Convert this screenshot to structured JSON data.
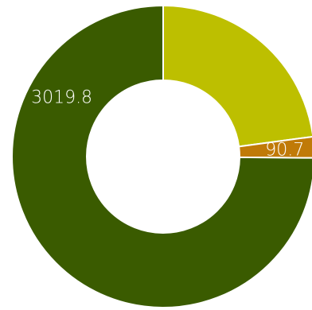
{
  "chart_data": {
    "type": "pie",
    "variant": "donut",
    "start_angle_deg": 0,
    "direction": "clockwise",
    "slices": [
      {
        "value": 923.5,
        "color": "#bdbf00",
        "label": ""
      },
      {
        "value": 90.7,
        "color": "#c07a08",
        "label": "90.7"
      },
      {
        "value": 3019.8,
        "color": "#3a5b00",
        "label": "3019.8"
      }
    ],
    "label_color": "#ffffff"
  }
}
